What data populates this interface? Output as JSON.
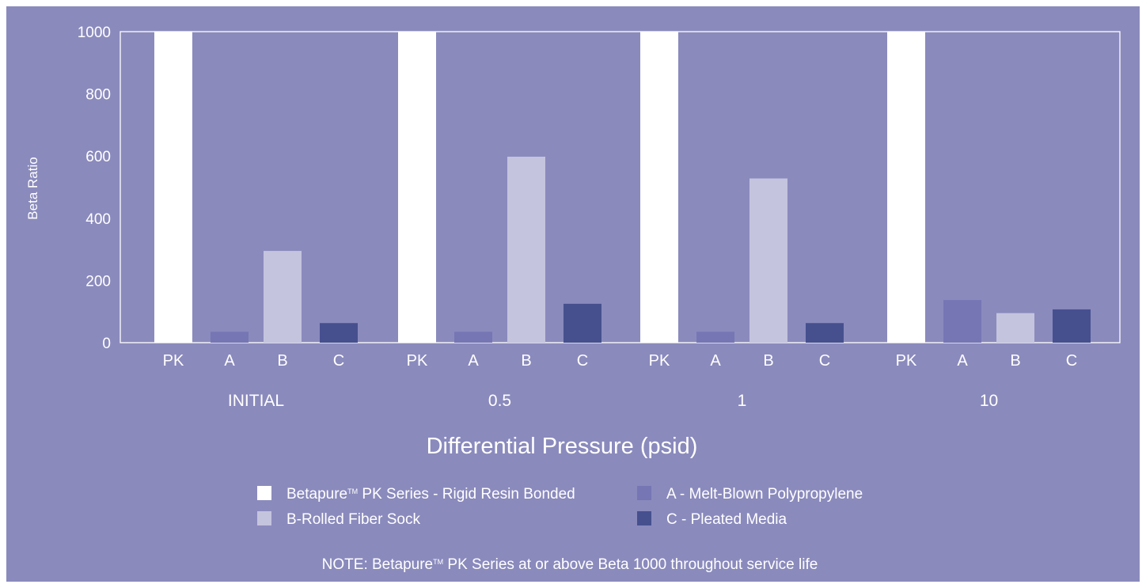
{
  "chart_data": {
    "type": "bar",
    "ylabel": "Beta Ratio",
    "xlabel": "Differential Pressure (psid)",
    "ylim": [
      0,
      1000
    ],
    "yticks": [
      "0",
      "200",
      "400",
      "600",
      "800",
      "1000"
    ],
    "grid": false,
    "legend_position": "bottom",
    "groups": [
      {
        "label": "INITIAL",
        "bars": [
          {
            "category": "PK",
            "series": "pk",
            "value": 1000
          },
          {
            "category": "A",
            "series": "a",
            "value": 35
          },
          {
            "category": "B",
            "series": "b",
            "value": 295
          },
          {
            "category": "C",
            "series": "c",
            "value": 63
          }
        ]
      },
      {
        "label": "0.5",
        "bars": [
          {
            "category": "PK",
            "series": "pk",
            "value": 1000
          },
          {
            "category": "A",
            "series": "a",
            "value": 35
          },
          {
            "category": "B",
            "series": "b",
            "value": 598
          },
          {
            "category": "C",
            "series": "c",
            "value": 125
          }
        ]
      },
      {
        "label": "1",
        "bars": [
          {
            "category": "PK",
            "series": "pk",
            "value": 1000
          },
          {
            "category": "A",
            "series": "a",
            "value": 35
          },
          {
            "category": "B",
            "series": "b",
            "value": 528
          },
          {
            "category": "C",
            "series": "c",
            "value": 63
          }
        ]
      },
      {
        "label": "10",
        "bars": [
          {
            "category": "PK",
            "series": "pk",
            "value": 1000
          },
          {
            "category": "A",
            "series": "a",
            "value": 137
          },
          {
            "category": "B",
            "series": "b",
            "value": 95
          },
          {
            "category": "C",
            "series": "c",
            "value": 107
          }
        ]
      }
    ],
    "legend": {
      "pk": {
        "before_tm": "Betapure",
        "tm": "TM",
        "after_tm": " PK Series - Rigid Resin Bonded",
        "color": "#ffffff"
      },
      "a": {
        "label": "A - Melt-Blown Polypropylene",
        "color": "#7676b5"
      },
      "b": {
        "label": "B-Rolled Fiber Sock",
        "color": "#c4c4de"
      },
      "c": {
        "label": "C - Pleated Media",
        "color": "#46508f"
      }
    },
    "note": {
      "before_tm": "NOTE: Betapure",
      "tm": "TM",
      "after_tm": " PK Series at or above Beta 1000 throughout service life"
    }
  },
  "colors": {
    "background": "#8a8abd",
    "axis": "#ffffff"
  }
}
